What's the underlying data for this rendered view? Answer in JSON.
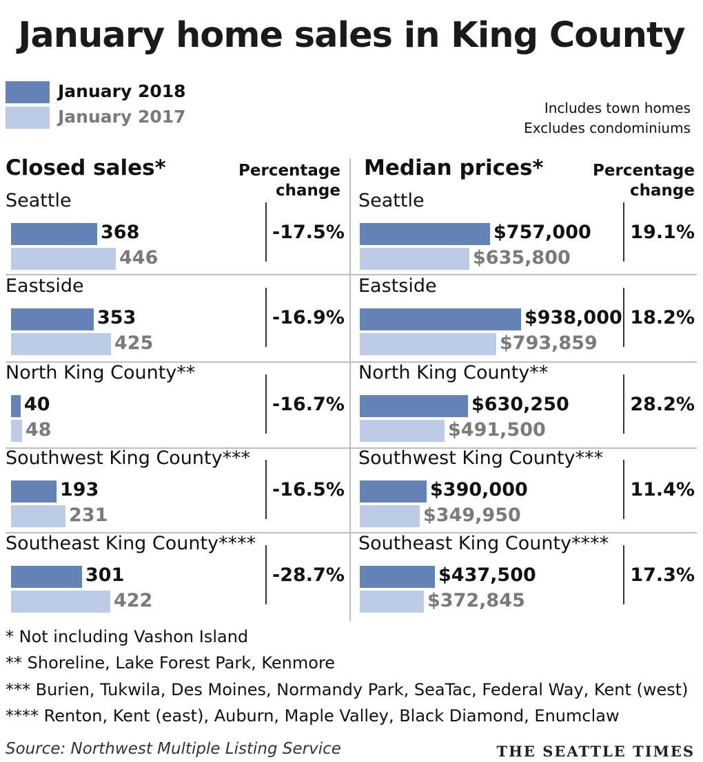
{
  "title": "January home sales in King County",
  "colors": {
    "y2018": "#6382b5",
    "y2017": "#bccbe6",
    "text2017": "#7a7a7a"
  },
  "legend": {
    "y2018": "January 2018",
    "y2017": "January 2017"
  },
  "notes": [
    "Includes town homes",
    "Excludes condominiums"
  ],
  "chart_data": [
    {
      "type": "bar",
      "title": "Closed sales*",
      "pct_header": [
        "Percentage",
        "change"
      ],
      "categories": [
        "Seattle",
        "Eastside",
        "North King County**",
        "Southwest King County***",
        "Southeast King County****"
      ],
      "series": [
        {
          "name": "January 2018",
          "values": [
            368,
            353,
            40,
            193,
            301
          ],
          "labels": [
            "368",
            "353",
            "40",
            "193",
            "301"
          ]
        },
        {
          "name": "January 2017",
          "values": [
            446,
            425,
            48,
            231,
            422
          ],
          "labels": [
            "446",
            "425",
            "48",
            "231",
            "422"
          ]
        }
      ],
      "pct_change": [
        "-17.5%",
        "-16.9%",
        "-16.7%",
        "-16.5%",
        "-28.7%"
      ]
    },
    {
      "type": "bar",
      "title": "Median prices*",
      "pct_header": [
        "Percentage",
        "change"
      ],
      "categories": [
        "Seattle",
        "Eastside",
        "North King County**",
        "Southwest King County***",
        "Southeast King County****"
      ],
      "series": [
        {
          "name": "January 2018",
          "values": [
            757000,
            938000,
            630250,
            390000,
            437500
          ],
          "labels": [
            "$757,000",
            "$938,000",
            "$630,250",
            "$390,000",
            "$437,500"
          ]
        },
        {
          "name": "January 2017",
          "values": [
            635800,
            793859,
            491500,
            349950,
            372845
          ],
          "labels": [
            "$635,800",
            "$793,859",
            "$491,500",
            "$349,950",
            "$372,845"
          ]
        }
      ],
      "pct_change": [
        "19.1%",
        "18.2%",
        "28.2%",
        "11.4%",
        "17.3%"
      ]
    }
  ],
  "footnotes": [
    "* Not including Vashon Island",
    "**  Shoreline, Lake Forest Park, Kenmore",
    "*** Burien, Tukwila, Des Moines, Normandy Park, SeaTac, Federal Way, Kent (west)",
    "**** Renton, Kent (east), Auburn, Maple Valley, Black Diamond, Enumclaw"
  ],
  "source": "Source: Northwest Multiple Listing Service",
  "brand": "THE SEATTLE TIMES"
}
